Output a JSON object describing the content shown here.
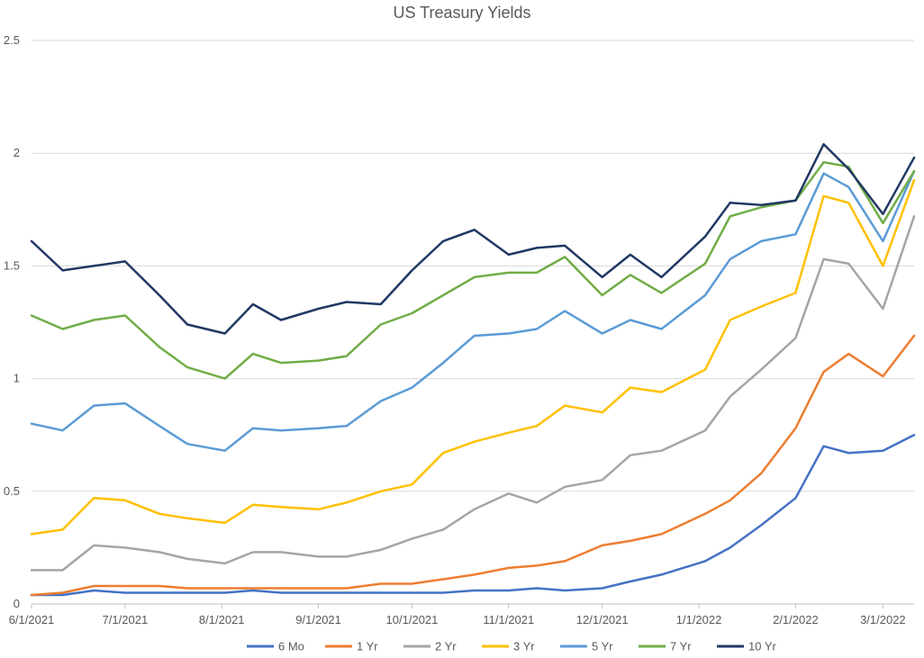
{
  "chart_data": {
    "type": "line",
    "title": "US Treasury Yields",
    "xlabel": "",
    "ylabel": "",
    "ylim": [
      0,
      2.5
    ],
    "yticks": [
      "0",
      "0.5",
      "1",
      "1.5",
      "2",
      "2.5"
    ],
    "xlim": [
      "2021-06-01",
      "2022-03-11"
    ],
    "xticks": [
      {
        "date": "2021-06-01",
        "label": "6/1/2021"
      },
      {
        "date": "2021-07-01",
        "label": "7/1/2021"
      },
      {
        "date": "2021-08-01",
        "label": "8/1/2021"
      },
      {
        "date": "2021-09-01",
        "label": "9/1/2021"
      },
      {
        "date": "2021-10-01",
        "label": "10/1/2021"
      },
      {
        "date": "2021-11-01",
        "label": "11/1/2021"
      },
      {
        "date": "2021-12-01",
        "label": "12/1/2021"
      },
      {
        "date": "2022-01-01",
        "label": "1/1/2022"
      },
      {
        "date": "2022-02-01",
        "label": "2/1/2022"
      },
      {
        "date": "2022-03-01",
        "label": "3/1/2022"
      }
    ],
    "grid": true,
    "legend": "bottom",
    "x": [
      "2021-06-01",
      "2021-06-11",
      "2021-06-21",
      "2021-07-01",
      "2021-07-12",
      "2021-07-21",
      "2021-08-02",
      "2021-08-11",
      "2021-08-20",
      "2021-09-01",
      "2021-09-10",
      "2021-09-21",
      "2021-10-01",
      "2021-10-11",
      "2021-10-21",
      "2021-11-01",
      "2021-11-10",
      "2021-11-19",
      "2021-12-01",
      "2021-12-10",
      "2021-12-20",
      "2022-01-03",
      "2022-01-11",
      "2022-01-21",
      "2022-02-01",
      "2022-02-10",
      "2022-02-18",
      "2022-03-01",
      "2022-03-11"
    ],
    "series": [
      {
        "name": "6 Mo",
        "color": "#4472C4",
        "values": [
          0.04,
          0.04,
          0.06,
          0.05,
          0.05,
          0.05,
          0.05,
          0.06,
          0.05,
          0.05,
          0.05,
          0.05,
          0.05,
          0.05,
          0.06,
          0.06,
          0.07,
          0.06,
          0.07,
          0.1,
          0.13,
          0.19,
          0.25,
          0.35,
          0.47,
          0.7,
          0.67,
          0.68,
          0.75
        ]
      },
      {
        "name": "1 Yr",
        "color": "#ED7D31",
        "values": [
          0.04,
          0.05,
          0.08,
          0.08,
          0.08,
          0.07,
          0.07,
          0.07,
          0.07,
          0.07,
          0.07,
          0.09,
          0.09,
          0.11,
          0.13,
          0.16,
          0.17,
          0.19,
          0.26,
          0.28,
          0.31,
          0.4,
          0.46,
          0.58,
          0.78,
          1.03,
          1.11,
          1.01,
          1.19
        ]
      },
      {
        "name": "2 Yr",
        "color": "#A5A5A5",
        "values": [
          0.15,
          0.15,
          0.26,
          0.25,
          0.23,
          0.2,
          0.18,
          0.23,
          0.23,
          0.21,
          0.21,
          0.24,
          0.29,
          0.33,
          0.42,
          0.49,
          0.45,
          0.52,
          0.55,
          0.66,
          0.68,
          0.77,
          0.92,
          1.04,
          1.18,
          1.53,
          1.51,
          1.31,
          1.72
        ]
      },
      {
        "name": "3 Yr",
        "color": "#FFC000",
        "values": [
          0.31,
          0.33,
          0.47,
          0.46,
          0.4,
          0.38,
          0.36,
          0.44,
          0.43,
          0.42,
          0.45,
          0.5,
          0.53,
          0.67,
          0.72,
          0.76,
          0.79,
          0.88,
          0.85,
          0.96,
          0.94,
          1.04,
          1.26,
          1.32,
          1.38,
          1.81,
          1.78,
          1.5,
          1.88
        ]
      },
      {
        "name": "5 Yr",
        "color": "#5B9BD5",
        "values": [
          0.8,
          0.77,
          0.88,
          0.89,
          0.79,
          0.71,
          0.68,
          0.78,
          0.77,
          0.78,
          0.79,
          0.9,
          0.96,
          1.07,
          1.19,
          1.2,
          1.22,
          1.3,
          1.2,
          1.26,
          1.22,
          1.37,
          1.53,
          1.61,
          1.64,
          1.91,
          1.85,
          1.61,
          1.92
        ]
      },
      {
        "name": "7 Yr",
        "color": "#70AD47",
        "values": [
          1.28,
          1.22,
          1.26,
          1.28,
          1.14,
          1.05,
          1.0,
          1.11,
          1.07,
          1.08,
          1.1,
          1.24,
          1.29,
          1.37,
          1.45,
          1.47,
          1.47,
          1.54,
          1.37,
          1.46,
          1.38,
          1.51,
          1.72,
          1.76,
          1.79,
          1.96,
          1.94,
          1.69,
          1.92
        ]
      },
      {
        "name": "10 Yr",
        "color": "#203864",
        "values": [
          1.61,
          1.48,
          1.5,
          1.52,
          1.37,
          1.24,
          1.2,
          1.33,
          1.26,
          1.31,
          1.34,
          1.33,
          1.48,
          1.61,
          1.66,
          1.55,
          1.58,
          1.59,
          1.45,
          1.55,
          1.45,
          1.63,
          1.78,
          1.77,
          1.79,
          2.04,
          1.93,
          1.73,
          1.98
        ]
      }
    ]
  }
}
